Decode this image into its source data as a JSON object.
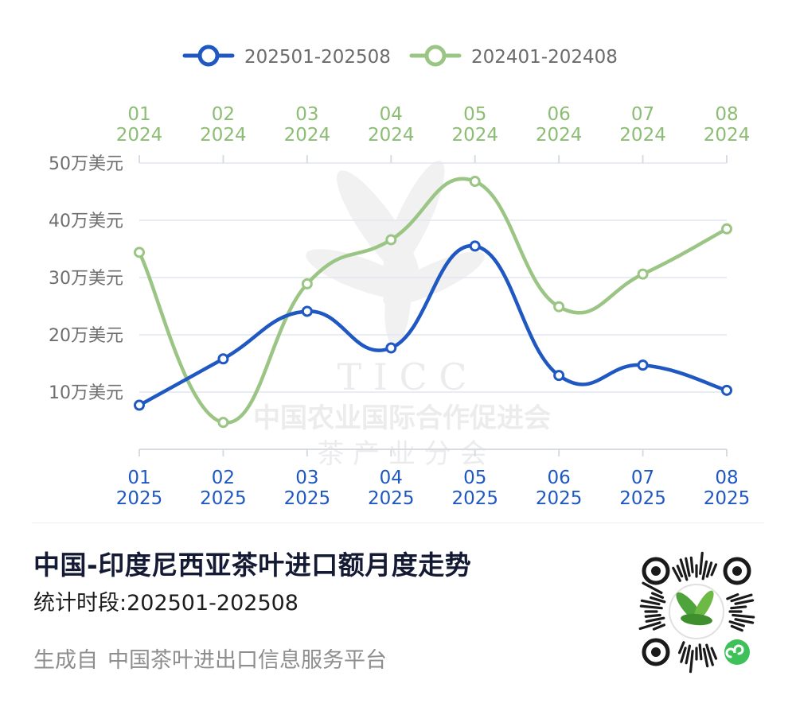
{
  "chart_data": {
    "type": "line",
    "smooth": true,
    "legend_position": "top-center",
    "grid": true,
    "y_tick_labels": [
      "10万美元",
      "20万美元",
      "30万美元",
      "40万美元",
      "50万美元"
    ],
    "y_ticks": [
      10,
      20,
      30,
      40,
      50
    ],
    "ylim": [
      0,
      50
    ],
    "x_bottom": [
      {
        "month": "01",
        "year": "2025"
      },
      {
        "month": "02",
        "year": "2025"
      },
      {
        "month": "03",
        "year": "2025"
      },
      {
        "month": "04",
        "year": "2025"
      },
      {
        "month": "05",
        "year": "2025"
      },
      {
        "month": "06",
        "year": "2025"
      },
      {
        "month": "07",
        "year": "2025"
      },
      {
        "month": "08",
        "year": "2025"
      }
    ],
    "x_top": [
      {
        "month": "01",
        "year": "2024"
      },
      {
        "month": "02",
        "year": "2024"
      },
      {
        "month": "03",
        "year": "2024"
      },
      {
        "month": "04",
        "year": "2024"
      },
      {
        "month": "05",
        "year": "2024"
      },
      {
        "month": "06",
        "year": "2024"
      },
      {
        "month": "07",
        "year": "2024"
      },
      {
        "month": "08",
        "year": "2024"
      }
    ],
    "series": [
      {
        "name": "202501-202508",
        "color": "#1f58c2",
        "axis": "bottom",
        "values": [
          7.7,
          15.8,
          24.1,
          17.7,
          35.5,
          12.9,
          14.7,
          10.3
        ]
      },
      {
        "name": "202401-202408",
        "color": "#9bc584",
        "axis": "top",
        "values": [
          34.4,
          4.7,
          28.9,
          36.6,
          46.8,
          24.9,
          30.6,
          38.5
        ]
      }
    ]
  },
  "colors": {
    "bottom_axis_text": "#1f58c2",
    "top_axis_text": "#8cbd74",
    "y_axis_text": "#6e6e6e",
    "grid": "#e4e6ef",
    "title": "#141a33"
  },
  "watermark": {
    "latin": "T I C C",
    "org": "中国农业国际合作促进会",
    "branch": "茶 产 业 分 会"
  },
  "footer": {
    "title": "中国-印度尼西亚茶叶进口额月度走势",
    "period": "统计时段:202501-202508",
    "credit_prefix": "生成自",
    "credit_source": "中国茶叶进出口信息服务平台"
  },
  "qr_icon": "mini-program-qr-code-icon"
}
